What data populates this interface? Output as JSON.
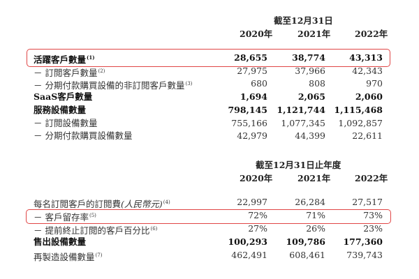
{
  "section1": {
    "period_header": "截至12月31日",
    "years": [
      "2020年",
      "2021年",
      "2022年"
    ],
    "rows": [
      {
        "label": "活躍客戶數量",
        "note": "(1)",
        "bold": true,
        "highlighted": true,
        "values": [
          "28,655",
          "38,774",
          "43,313"
        ]
      },
      {
        "label": "－ 訂閲客戶數量",
        "note": "(2)",
        "bold": false,
        "values": [
          "27,975",
          "37,966",
          "42,343"
        ]
      },
      {
        "label": "－ 分期付款購買設備的非訂閲客戶數量",
        "note": "(3)",
        "bold": false,
        "values": [
          "680",
          "808",
          "970"
        ]
      },
      {
        "label": "SaaS客戶數量",
        "note": "",
        "bold": true,
        "values": [
          "1,694",
          "2,065",
          "2,060"
        ]
      },
      {
        "label": "服務設備數量",
        "note": "",
        "bold": true,
        "values": [
          "798,145",
          "1,121,744",
          "1,115,468"
        ]
      },
      {
        "label": "－ 訂閲設備數量",
        "note": "",
        "bold": false,
        "values": [
          "755,166",
          "1,077,345",
          "1,092,857"
        ]
      },
      {
        "label": "－ 分期付款購買設備數量",
        "note": "",
        "bold": false,
        "values": [
          "42,979",
          "44,399",
          "22,611"
        ]
      }
    ]
  },
  "section2": {
    "period_header": "截至12月31日止年度",
    "years": [
      "2020年",
      "2021年",
      "2022年"
    ],
    "rows": [
      {
        "label": "每名訂閲客戶的訂閲費",
        "label_italic": "(人民幣元)",
        "note": "(4)",
        "bold": false,
        "values": [
          "22,997",
          "26,284",
          "27,517"
        ]
      },
      {
        "label": "－ 客戶留存率",
        "note": "(5)",
        "bold": false,
        "highlighted": true,
        "values": [
          "72%",
          "71%",
          "73%"
        ]
      },
      {
        "label": "－ 提前終止訂閲的客戶百分比",
        "note": "(6)",
        "bold": false,
        "values": [
          "27%",
          "26%",
          "23%"
        ]
      },
      {
        "label": "售出設備數量",
        "note": "",
        "bold": true,
        "values": [
          "100,293",
          "109,786",
          "177,360"
        ]
      },
      {
        "label": "再製造設備數量",
        "note": "(7)",
        "bold": false,
        "values": [
          "462,491",
          "608,461",
          "739,743"
        ]
      }
    ]
  },
  "highlight_color": "#e04646"
}
